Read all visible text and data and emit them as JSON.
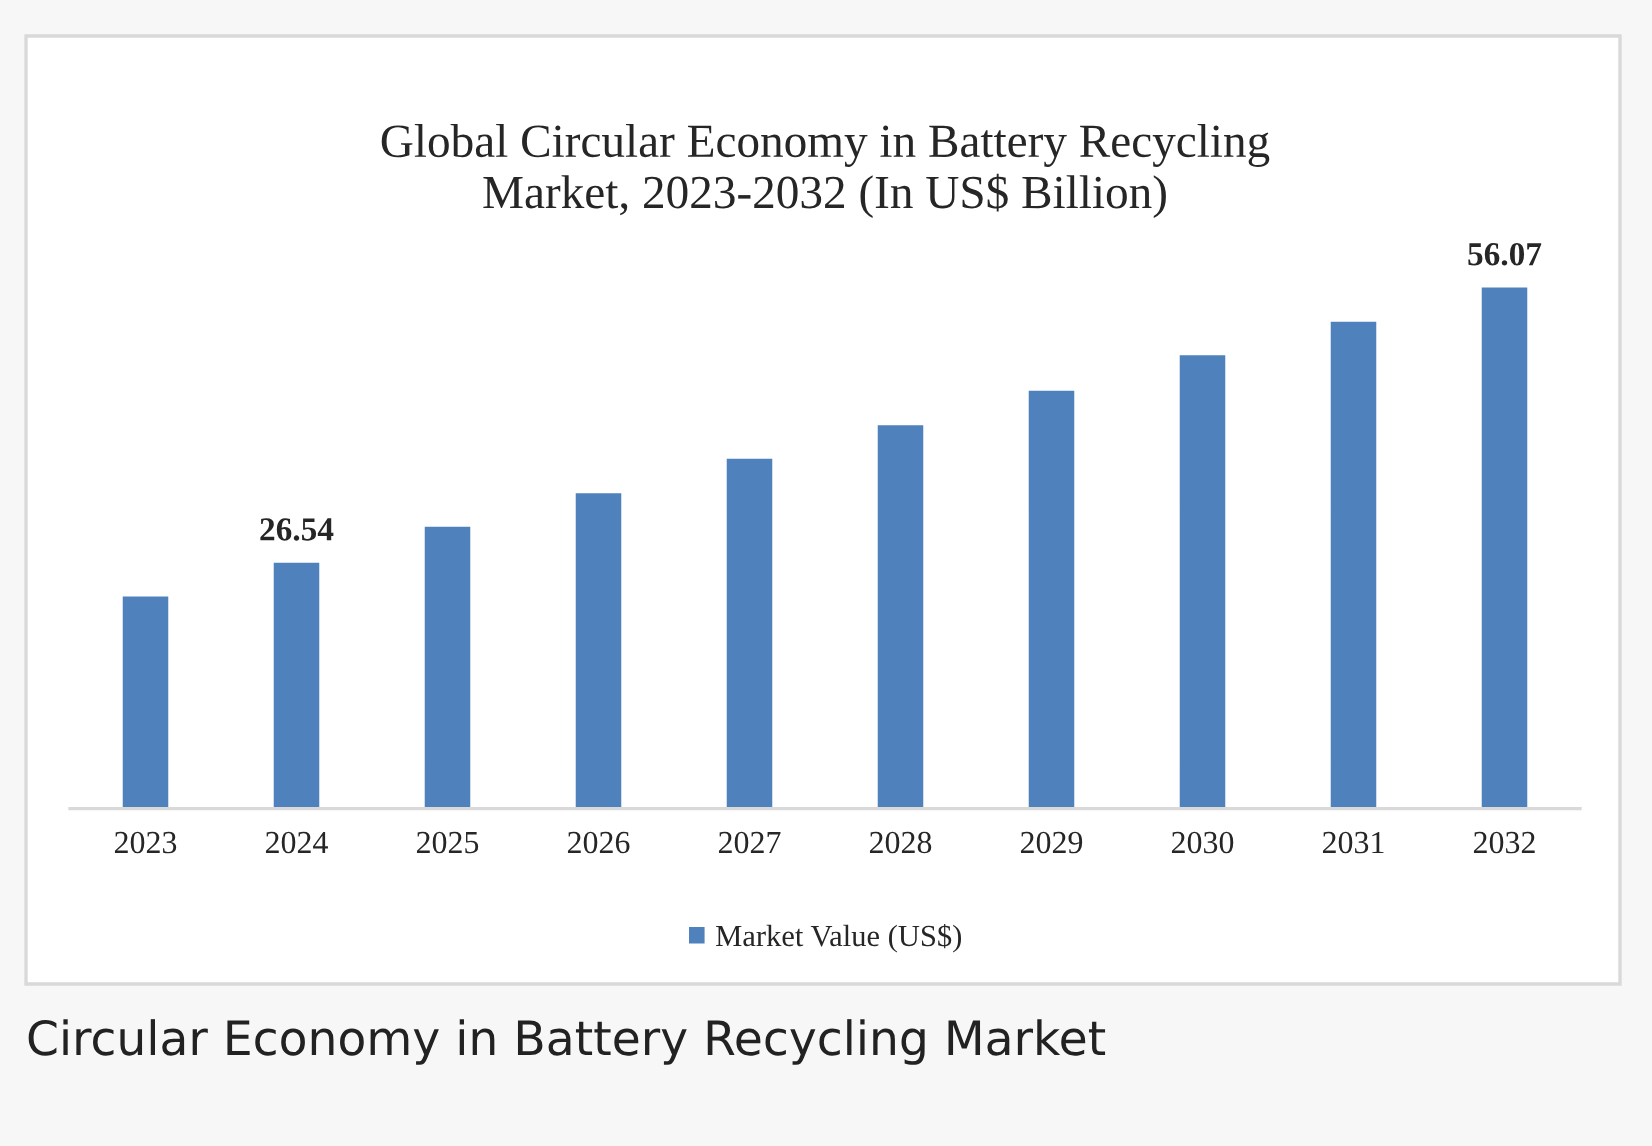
{
  "chart_data": {
    "type": "bar",
    "title": "Global Circular Economy in Battery Recycling\nMarket, 2023-2032 (In US$ Billion)",
    "categories": [
      "2023",
      "2024",
      "2025",
      "2026",
      "2027",
      "2028",
      "2029",
      "2030",
      "2031",
      "2032"
    ],
    "series": [
      {
        "name": "Market Value (US$)",
        "color": "#4f81bd",
        "values": [
          22.9,
          26.54,
          30.4,
          34.0,
          37.7,
          41.3,
          45.0,
          48.8,
          52.4,
          56.07
        ],
        "value_labels": [
          null,
          "26.54",
          null,
          null,
          null,
          null,
          null,
          null,
          null,
          "56.07"
        ]
      }
    ],
    "tick_labels": "x",
    "grid": false,
    "legend": "bottom",
    "annotations": [
      "Circular Economy in Battery Recycling Market"
    ]
  }
}
